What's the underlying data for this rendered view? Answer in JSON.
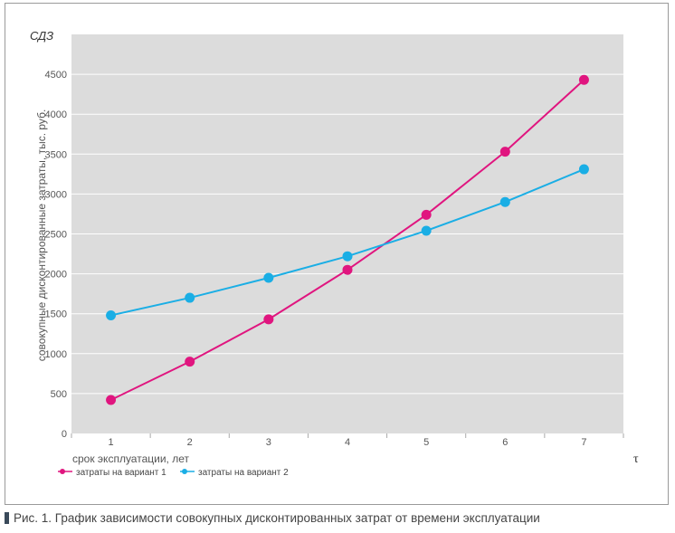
{
  "caption": "Рис. 1. График зависимости совокупных дисконтированных затрат от времени эксплуатации",
  "chart_data": {
    "type": "line",
    "title": "СДЗ",
    "ylabel": "совокупные дисконтированные затраты, тыс. руб.",
    "xlabel": "срок эксплуатации, лет",
    "x_axis_symbol": "τ",
    "x": [
      1,
      2,
      3,
      4,
      5,
      6,
      7
    ],
    "xlim": [
      0.5,
      7.5
    ],
    "ylim": [
      0,
      5000
    ],
    "y_ticks": [
      0,
      500,
      1000,
      1500,
      2000,
      2500,
      3000,
      3500,
      4000,
      4500
    ],
    "grid": true,
    "background": "#dcdcdc",
    "series": [
      {
        "name": "затраты на вариант 1",
        "color": "#e0157f",
        "values": [
          420,
          900,
          1430,
          2050,
          2740,
          3530,
          4430
        ]
      },
      {
        "name": "затраты на вариант 2",
        "color": "#1aaee5",
        "values": [
          1480,
          1700,
          1950,
          2220,
          2540,
          2900,
          3310
        ]
      }
    ]
  }
}
